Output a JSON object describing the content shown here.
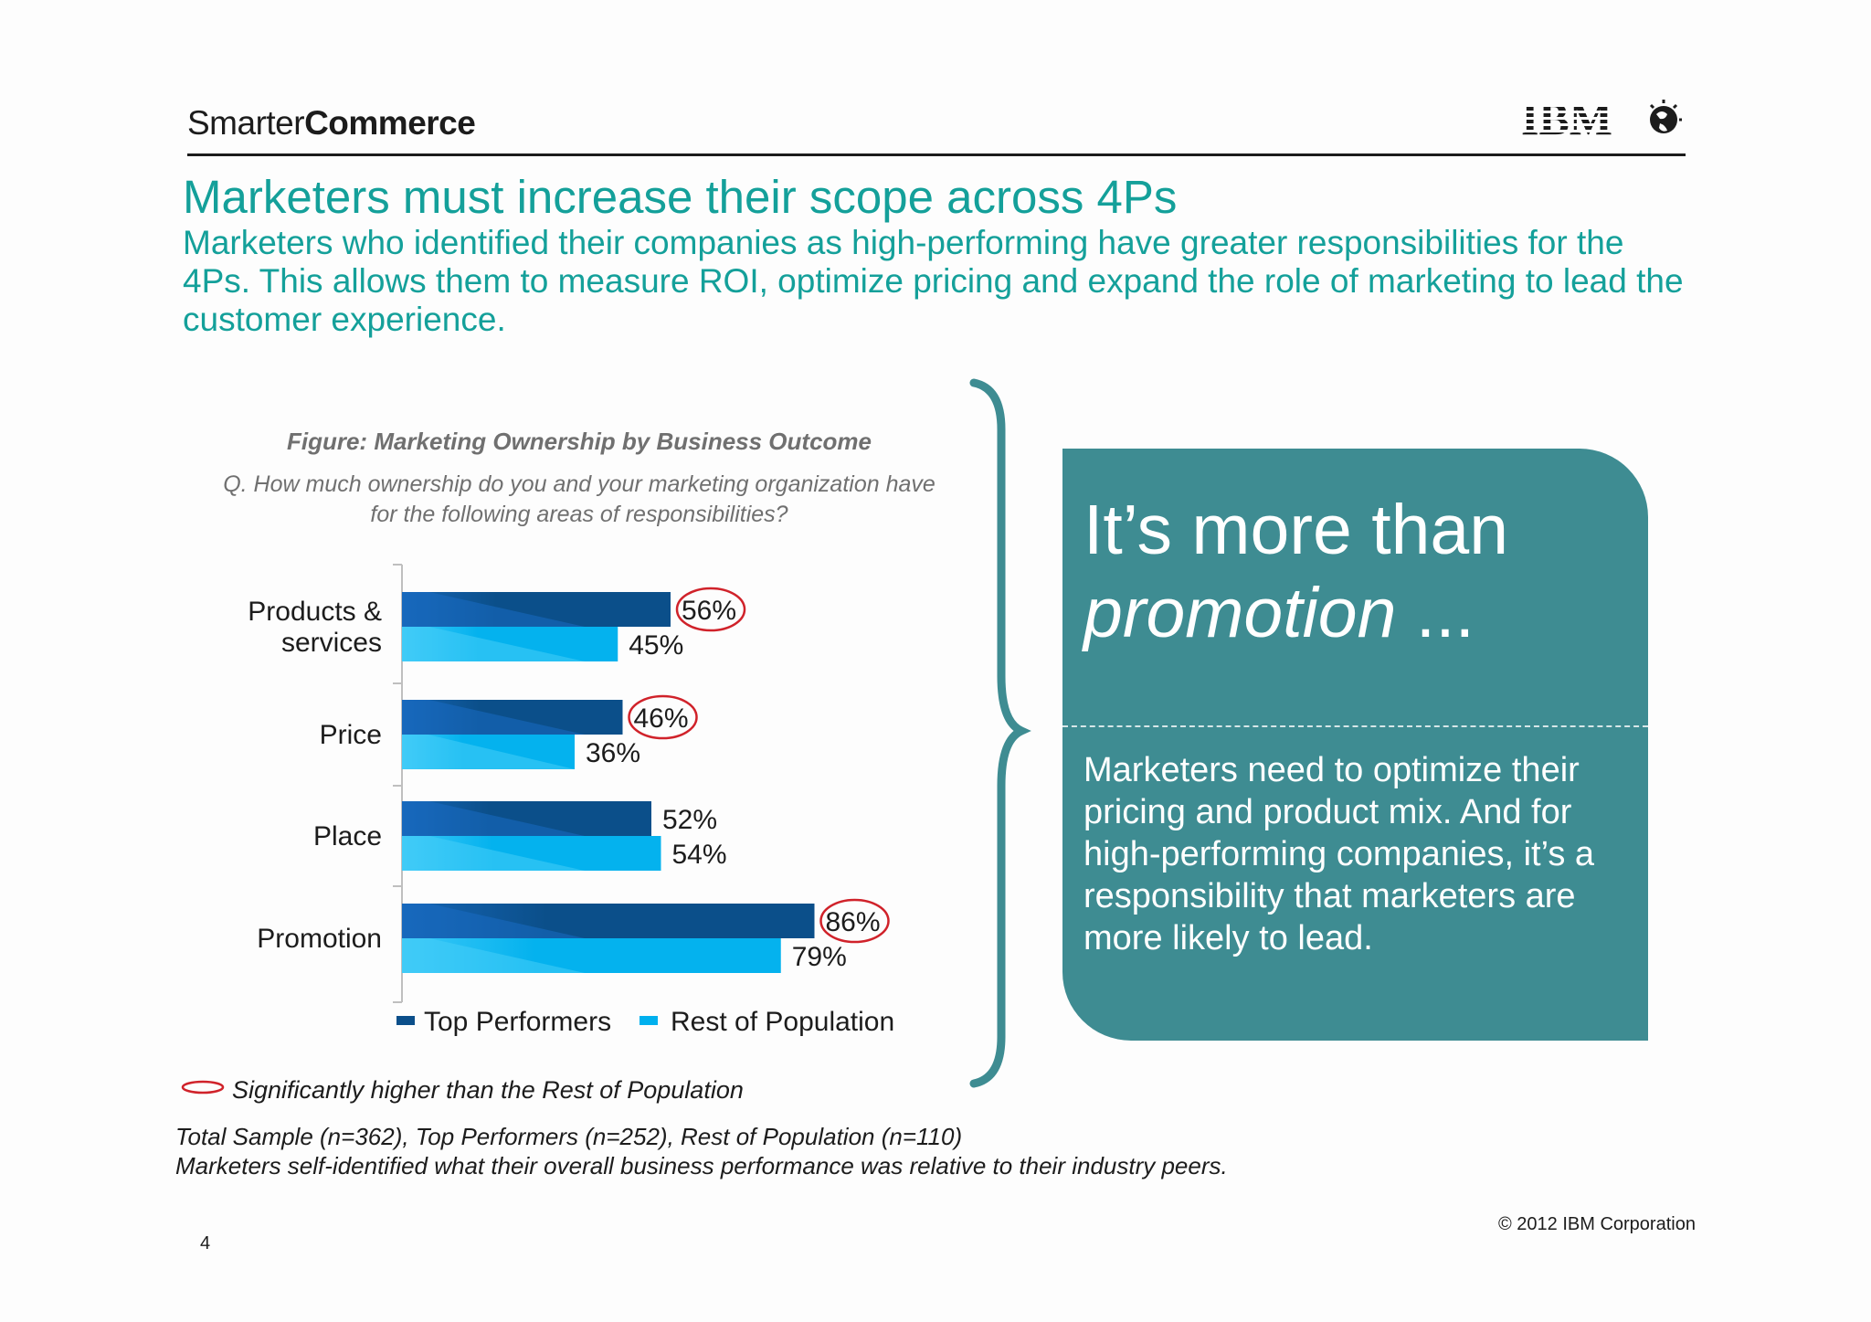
{
  "header": {
    "brand_light": "Smarter",
    "brand_bold": "Commerce",
    "logo_text": "IBM"
  },
  "title": "Marketers must increase their scope across 4Ps",
  "subtitle": "Marketers who identified their companies as high-performing have greater responsibilities for the 4Ps.  This allows them to measure ROI, optimize pricing and expand the role of marketing to lead the customer experience.",
  "chart_data": {
    "type": "bar",
    "orientation": "horizontal",
    "title": "Figure: Marketing Ownership by Business Outcome",
    "question": "Q. How much ownership do you and your marketing organization have for the following areas of responsibilities?",
    "categories": [
      "Products & services",
      "Price",
      "Place",
      "Promotion"
    ],
    "category_lines": [
      [
        "Products &",
        "services"
      ],
      [
        "Price"
      ],
      [
        "Place"
      ],
      [
        "Promotion"
      ]
    ],
    "series": [
      {
        "name": "Top Performers",
        "values": [
          56,
          46,
          52,
          86
        ],
        "color": "#0b4f8a"
      },
      {
        "name": "Rest of Population",
        "values": [
          45,
          36,
          54,
          79
        ],
        "color": "#00b0ee"
      }
    ],
    "value_labels": {
      "Top Performers": [
        "56%",
        "46%",
        "52%",
        "86%"
      ],
      "Rest of Population": [
        "45%",
        "36%",
        "54%",
        "79%"
      ]
    },
    "significant": {
      "Top Performers": [
        true,
        true,
        false,
        true
      ],
      "Rest of Population": [
        false,
        false,
        false,
        false
      ]
    },
    "xlim": [
      0,
      100
    ],
    "legend_position": "bottom",
    "grid": false
  },
  "callout": {
    "headline_line1": "It’s more than",
    "headline_italic": "promotion",
    "headline_tail": " ...",
    "body": "Marketers need to optimize their pricing and product mix.  And for high-performing companies, it’s a responsibility that marketers are more likely to lead."
  },
  "notes": {
    "significance": "Significantly higher than the Rest of Population",
    "sample_line1": "Total Sample (n=362), Top Performers (n=252), Rest of Population (n=110)",
    "sample_line2": "Marketers self-identified what their overall business performance was relative to their industry peers."
  },
  "footer": {
    "copyright": "© 2012 IBM Corporation",
    "page_number": "4"
  },
  "colors": {
    "accent": "#14a09a",
    "callout_bg": "#3e8c92",
    "brace": "#3e8c92",
    "highlight_circle": "#d0222a"
  }
}
